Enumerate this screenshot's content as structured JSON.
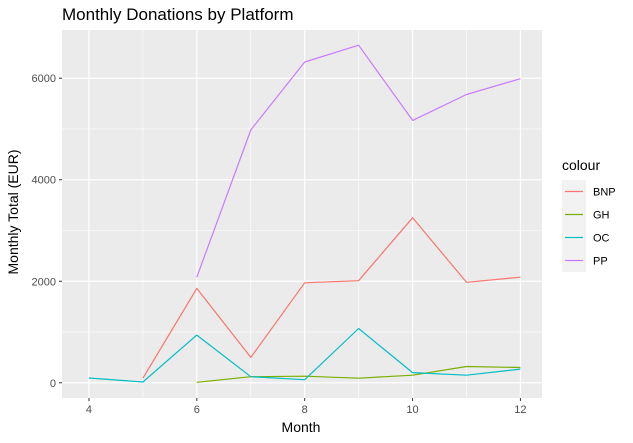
{
  "chart_data": {
    "type": "line",
    "title": "Monthly Donations by Platform",
    "xlabel": "Month",
    "ylabel": "Monthly Total (EUR)",
    "xlim": [
      3.5,
      12.4
    ],
    "ylim": [
      -300,
      6950
    ],
    "x_ticks": [
      4,
      6,
      8,
      10,
      12
    ],
    "x_tick_labels": [
      "4",
      "6",
      "8",
      "10",
      "12"
    ],
    "y_ticks": [
      0,
      2000,
      4000,
      6000
    ],
    "y_tick_labels": [
      "0",
      "2000",
      "4000",
      "6000"
    ],
    "grid": true,
    "legend": {
      "title": "colour",
      "position": "right"
    },
    "series": [
      {
        "name": "BNP",
        "color": "#F8766D",
        "x": [
          5,
          6,
          7,
          8,
          9,
          10,
          11,
          12
        ],
        "y": [
          90,
          1860,
          500,
          1970,
          2010,
          3250,
          1980,
          2080
        ]
      },
      {
        "name": "GH",
        "color": "#7CAE00",
        "x": [
          6,
          7,
          8,
          9,
          10,
          11,
          12
        ],
        "y": [
          10,
          120,
          130,
          90,
          150,
          320,
          300
        ]
      },
      {
        "name": "OC",
        "color": "#00BFC4",
        "x": [
          4,
          5,
          6,
          7,
          8,
          9,
          10,
          11,
          12
        ],
        "y": [
          95,
          15,
          940,
          120,
          60,
          1070,
          200,
          150,
          270
        ]
      },
      {
        "name": "PP",
        "color": "#C77CFF",
        "x": [
          6,
          7,
          8,
          9,
          10,
          11,
          12
        ],
        "y": [
          2080,
          4980,
          6320,
          6650,
          5170,
          5680,
          5990
        ]
      }
    ]
  }
}
